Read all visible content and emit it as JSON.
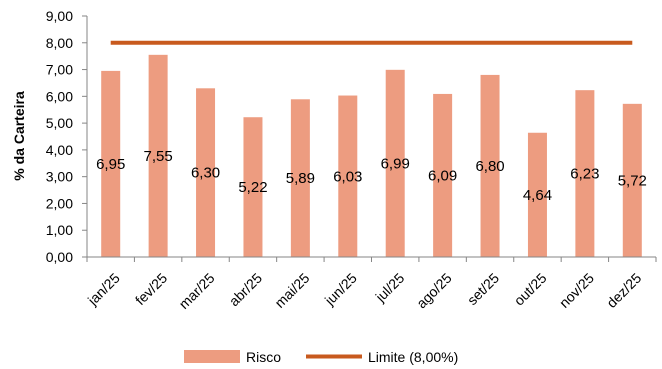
{
  "chart_data": {
    "type": "bar",
    "categories": [
      "jan/25",
      "fev/25",
      "mar/25",
      "abr/25",
      "mai/25",
      "jun/25",
      "jul/25",
      "ago/25",
      "set/25",
      "out/25",
      "nov/25",
      "dez/25"
    ],
    "series": [
      {
        "name": "Risco",
        "type": "bar",
        "values": [
          6.95,
          7.55,
          6.3,
          5.22,
          5.89,
          6.03,
          6.99,
          6.09,
          6.8,
          4.64,
          6.23,
          5.72
        ],
        "labels": [
          "6,95",
          "7,55",
          "6,30",
          "5,22",
          "5,89",
          "6,03",
          "6,99",
          "6,09",
          "6,80",
          "4,64",
          "6,23",
          "5,72"
        ],
        "color": "#ED9C80"
      },
      {
        "name": "Limite (8,00%)",
        "type": "line",
        "values": [
          8,
          8,
          8,
          8,
          8,
          8,
          8,
          8,
          8,
          8,
          8,
          8
        ],
        "color": "#C85A1E"
      }
    ],
    "title": "",
    "xlabel": "",
    "ylabel": "% da Carteira",
    "ylim": [
      0,
      9
    ],
    "yticks": [
      "0,00",
      "1,00",
      "2,00",
      "3,00",
      "4,00",
      "5,00",
      "6,00",
      "7,00",
      "8,00",
      "9,00"
    ],
    "grid": false,
    "legend_position": "bottom"
  }
}
